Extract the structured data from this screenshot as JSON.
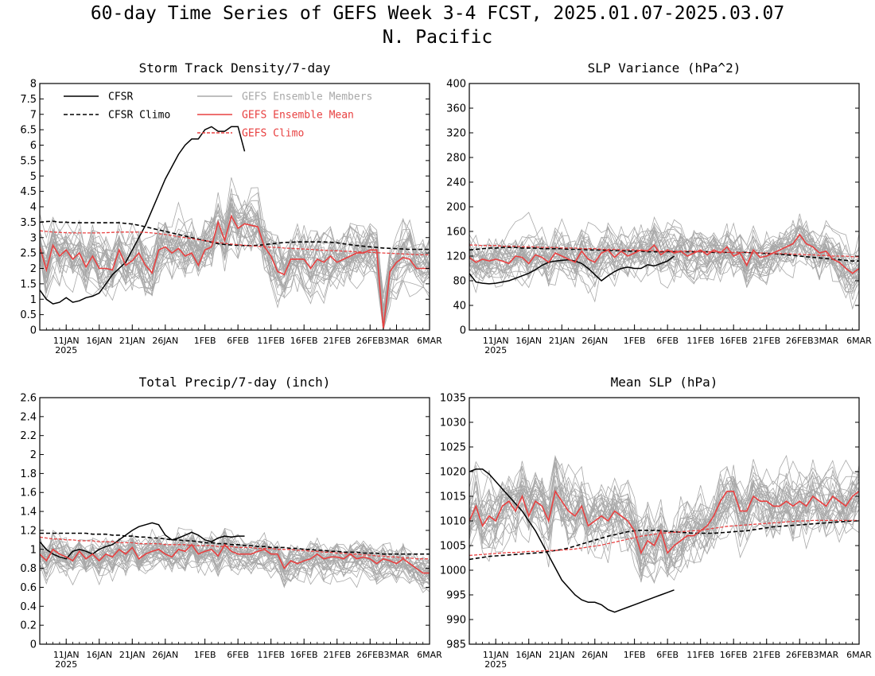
{
  "figure": {
    "title_line1": "60-day Time Series of GEFS Week 3-4 FCST, 2025.01.07-2025.03.07",
    "title_line2": "N. Pacific"
  },
  "colors": {
    "cfsr": "#000000",
    "members": "#a8a8a8",
    "ens_mean": "#e84040",
    "gefs_climo": "#e84040"
  },
  "legend": {
    "cfsr": "CFSR",
    "cfsr_climo": "CFSR Climo",
    "members": "GEFS Ensemble Members",
    "ens_mean": "GEFS Ensemble Mean",
    "gefs_climo": "GEFS Climo"
  },
  "x_axis": {
    "tick_day_index": [
      4,
      9,
      14,
      19,
      25,
      30,
      35,
      40,
      45,
      50,
      54,
      59
    ],
    "tick_labels": [
      "11JAN",
      "16JAN",
      "21JAN",
      "26JAN",
      "1FEB",
      "6FEB",
      "11FEB",
      "16FEB",
      "21FEB",
      "26FEB",
      "3MAR",
      "6MAR"
    ],
    "year_label": "2025"
  },
  "chart_data": [
    {
      "type": "line",
      "title": "Storm Track Density/7-day",
      "ylim": [
        0,
        8
      ],
      "yticks": [
        "0",
        "0.5",
        "1",
        "1.5",
        "2",
        "2.5",
        "3",
        "3.5",
        "4",
        "4.5",
        "5",
        "5.5",
        "6",
        "6.5",
        "7",
        "7.5",
        "8"
      ],
      "member_spread": 1.0,
      "series": [
        {
          "name": "CFSR",
          "values": [
            1.3,
            1.0,
            0.85,
            0.9,
            1.05,
            0.9,
            0.95,
            1.05,
            1.1,
            1.2,
            1.5,
            1.8,
            2.0,
            2.2,
            2.6,
            3.0,
            3.4,
            3.9,
            4.4,
            4.9,
            5.3,
            5.7,
            6.0,
            6.2,
            6.2,
            6.5,
            6.6,
            6.45,
            6.45,
            6.6,
            6.6,
            5.8
          ]
        },
        {
          "name": "CFSR Climo",
          "values": [
            3.5,
            3.52,
            3.53,
            3.5,
            3.5,
            3.48,
            3.48,
            3.48,
            3.48,
            3.48,
            3.48,
            3.48,
            3.48,
            3.46,
            3.44,
            3.4,
            3.35,
            3.3,
            3.25,
            3.2,
            3.15,
            3.1,
            3.05,
            3.0,
            2.95,
            2.9,
            2.85,
            2.8,
            2.78,
            2.76,
            2.75,
            2.74,
            2.74,
            2.75,
            2.77,
            2.8,
            2.82,
            2.84,
            2.85,
            2.86,
            2.86,
            2.86,
            2.86,
            2.86,
            2.85,
            2.83,
            2.8,
            2.77,
            2.74,
            2.72,
            2.7,
            2.68,
            2.66,
            2.65,
            2.64,
            2.63,
            2.62,
            2.62,
            2.62,
            2.62
          ]
        },
        {
          "name": "GEFS Ensemble Mean",
          "values": [
            2.7,
            1.95,
            2.75,
            2.4,
            2.6,
            2.3,
            2.5,
            2.05,
            2.4,
            2.0,
            2.0,
            1.95,
            2.6,
            2.1,
            2.25,
            2.5,
            2.1,
            1.85,
            2.6,
            2.7,
            2.5,
            2.65,
            2.4,
            2.5,
            2.1,
            2.6,
            2.7,
            3.5,
            2.9,
            3.7,
            3.3,
            3.45,
            3.4,
            3.35,
            2.7,
            2.4,
            1.9,
            1.8,
            2.3,
            2.3,
            2.3,
            2.0,
            2.3,
            2.2,
            2.4,
            2.2,
            2.3,
            2.4,
            2.5,
            2.5,
            2.6,
            2.6,
            0.05,
            1.9,
            2.2,
            2.35,
            2.3,
            2.0,
            2.0,
            2.0
          ]
        },
        {
          "name": "GEFS Climo",
          "values": [
            3.22,
            3.2,
            3.18,
            3.17,
            3.16,
            3.15,
            3.15,
            3.15,
            3.15,
            3.15,
            3.16,
            3.17,
            3.18,
            3.18,
            3.18,
            3.18,
            3.17,
            3.15,
            3.13,
            3.1,
            3.07,
            3.03,
            3.0,
            2.97,
            2.93,
            2.9,
            2.87,
            2.84,
            2.81,
            2.79,
            2.77,
            2.75,
            2.73,
            2.72,
            2.7,
            2.69,
            2.68,
            2.66,
            2.65,
            2.64,
            2.63,
            2.62,
            2.6,
            2.59,
            2.58,
            2.57,
            2.56,
            2.55,
            2.54,
            2.53,
            2.52,
            2.51,
            2.5,
            2.49,
            2.48,
            2.47,
            2.46,
            2.45,
            2.44,
            2.44
          ]
        }
      ]
    },
    {
      "type": "line",
      "title": "SLP Variance (hPa^2)",
      "ylim": [
        0,
        400
      ],
      "yticks": [
        "0",
        "40",
        "80",
        "120",
        "160",
        "200",
        "240",
        "280",
        "320",
        "360",
        "400"
      ],
      "member_spread": 42,
      "series": [
        {
          "name": "CFSR",
          "values": [
            92,
            78,
            76,
            75,
            76,
            78,
            80,
            84,
            88,
            92,
            98,
            105,
            110,
            112,
            113,
            114,
            112,
            108,
            100,
            90,
            80,
            88,
            95,
            100,
            102,
            100,
            100,
            106,
            104,
            108,
            112,
            120
          ]
        },
        {
          "name": "CFSR Climo",
          "values": [
            130,
            131,
            132,
            133,
            133,
            134,
            134,
            134,
            133,
            133,
            133,
            132,
            132,
            132,
            132,
            131,
            131,
            131,
            130,
            130,
            130,
            129,
            129,
            129,
            128,
            128,
            128,
            127,
            127,
            127,
            127,
            127,
            127,
            127,
            127,
            127,
            127,
            126,
            126,
            126,
            126,
            126,
            126,
            125,
            125,
            124,
            124,
            123,
            122,
            121,
            120,
            119,
            118,
            117,
            116,
            115,
            114,
            113,
            112,
            112
          ]
        },
        {
          "name": "GEFS Ensemble Mean",
          "values": [
            118,
            110,
            115,
            112,
            115,
            112,
            108,
            120,
            118,
            108,
            122,
            118,
            110,
            125,
            120,
            115,
            110,
            128,
            115,
            110,
            125,
            130,
            118,
            128,
            120,
            125,
            130,
            128,
            138,
            122,
            130,
            125,
            128,
            120,
            125,
            130,
            122,
            130,
            125,
            135,
            120,
            125,
            105,
            130,
            118,
            120,
            125,
            130,
            135,
            140,
            155,
            140,
            135,
            125,
            128,
            115,
            110,
            100,
            92,
            100
          ]
        },
        {
          "name": "GEFS Climo",
          "values": [
            138,
            138,
            137,
            137,
            137,
            136,
            136,
            136,
            135,
            135,
            135,
            134,
            134,
            134,
            133,
            133,
            133,
            132,
            132,
            132,
            131,
            131,
            131,
            130,
            130,
            130,
            129,
            129,
            129,
            128,
            128,
            128,
            128,
            128,
            128,
            127,
            127,
            127,
            127,
            126,
            126,
            126,
            126,
            125,
            125,
            125,
            124,
            124,
            124,
            123,
            123,
            122,
            122,
            121,
            121,
            120,
            120,
            120,
            119,
            119
          ]
        }
      ]
    },
    {
      "type": "line",
      "title": "Total Precip/7-day (inch)",
      "ylim": [
        0,
        2.6
      ],
      "yticks": [
        "0",
        "0.2",
        "0.4",
        "0.6",
        "0.8",
        "1",
        "1.2",
        "1.4",
        "1.6",
        "1.8",
        "2",
        "2.2",
        "2.4",
        "2.6"
      ],
      "member_spread": 0.2,
      "series": [
        {
          "name": "CFSR",
          "values": [
            1.08,
            1.0,
            0.95,
            0.92,
            0.9,
            0.98,
            1.0,
            0.98,
            0.95,
            1.0,
            1.03,
            1.05,
            1.1,
            1.15,
            1.2,
            1.24,
            1.26,
            1.28,
            1.26,
            1.15,
            1.1,
            1.12,
            1.15,
            1.18,
            1.15,
            1.1,
            1.08,
            1.12,
            1.14,
            1.13,
            1.14,
            1.14
          ]
        },
        {
          "name": "CFSR Climo",
          "values": [
            1.17,
            1.17,
            1.17,
            1.17,
            1.17,
            1.17,
            1.17,
            1.17,
            1.16,
            1.16,
            1.16,
            1.15,
            1.15,
            1.14,
            1.14,
            1.13,
            1.13,
            1.12,
            1.12,
            1.11,
            1.1,
            1.1,
            1.09,
            1.09,
            1.08,
            1.07,
            1.07,
            1.06,
            1.06,
            1.05,
            1.05,
            1.04,
            1.04,
            1.03,
            1.03,
            1.02,
            1.02,
            1.02,
            1.01,
            1.01,
            1.0,
            1.0,
            0.99,
            0.99,
            0.98,
            0.98,
            0.97,
            0.97,
            0.97,
            0.96,
            0.96,
            0.96,
            0.95,
            0.95,
            0.95,
            0.95,
            0.95,
            0.95,
            0.95,
            0.95
          ]
        },
        {
          "name": "GEFS Ensemble Mean",
          "values": [
            0.95,
            0.88,
            1.0,
            0.95,
            0.92,
            0.88,
            0.98,
            0.9,
            0.95,
            0.88,
            0.95,
            0.92,
            1.0,
            0.95,
            1.02,
            0.9,
            0.95,
            0.98,
            1.0,
            0.95,
            0.92,
            1.0,
            0.98,
            1.05,
            0.95,
            0.98,
            1.0,
            0.93,
            1.05,
            0.98,
            0.95,
            0.95,
            0.95,
            0.98,
            1.0,
            0.95,
            0.95,
            0.8,
            0.88,
            0.85,
            0.88,
            0.9,
            0.95,
            0.9,
            0.92,
            0.92,
            0.9,
            0.95,
            0.9,
            0.92,
            0.9,
            0.85,
            0.9,
            0.88,
            0.85,
            0.9,
            0.85,
            0.8,
            0.75,
            0.75
          ]
        },
        {
          "name": "GEFS Climo",
          "values": [
            1.13,
            1.12,
            1.11,
            1.11,
            1.1,
            1.1,
            1.09,
            1.09,
            1.09,
            1.08,
            1.08,
            1.08,
            1.07,
            1.07,
            1.07,
            1.06,
            1.06,
            1.06,
            1.06,
            1.05,
            1.05,
            1.05,
            1.05,
            1.04,
            1.04,
            1.04,
            1.04,
            1.03,
            1.03,
            1.03,
            1.02,
            1.02,
            1.02,
            1.01,
            1.01,
            1.01,
            1.0,
            1.0,
            1.0,
            0.99,
            0.99,
            0.98,
            0.98,
            0.97,
            0.97,
            0.96,
            0.96,
            0.95,
            0.95,
            0.94,
            0.94,
            0.93,
            0.93,
            0.92,
            0.92,
            0.91,
            0.91,
            0.9,
            0.9,
            0.9
          ]
        }
      ]
    },
    {
      "type": "line",
      "title": "Mean SLP (hPa)",
      "ylim": [
        985,
        1035
      ],
      "yticks": [
        "985",
        "990",
        "995",
        "1000",
        "1005",
        "1010",
        "1015",
        "1020",
        "1025",
        "1030",
        "1035"
      ],
      "member_spread": 7,
      "series": [
        {
          "name": "CFSR",
          "values": [
            1020,
            1020.5,
            1020.5,
            1019.5,
            1018,
            1016.5,
            1015,
            1013.5,
            1012,
            1010,
            1008,
            1005.5,
            1003,
            1000.5,
            998,
            996.5,
            995,
            994,
            993.5,
            993.5,
            993,
            992,
            991.5,
            992,
            992.5,
            993,
            993.5,
            994,
            994.5,
            995,
            995.5,
            996
          ]
        },
        {
          "name": "CFSR Climo",
          "values": [
            1002.2,
            1002.4,
            1002.6,
            1002.8,
            1002.9,
            1003,
            1003.1,
            1003.2,
            1003.3,
            1003.4,
            1003.5,
            1003.6,
            1003.8,
            1004,
            1004.2,
            1004.5,
            1004.9,
            1005.3,
            1005.7,
            1006.1,
            1006.5,
            1006.9,
            1007.2,
            1007.5,
            1007.8,
            1008,
            1008.1,
            1008.1,
            1008.1,
            1008,
            1007.9,
            1007.8,
            1007.7,
            1007.6,
            1007.5,
            1007.5,
            1007.5,
            1007.5,
            1007.6,
            1007.7,
            1007.8,
            1007.9,
            1008,
            1008.2,
            1008.4,
            1008.6,
            1008.8,
            1008.9,
            1009,
            1009.1,
            1009.2,
            1009.3,
            1009.4,
            1009.5,
            1009.6,
            1009.7,
            1009.8,
            1009.9,
            1010,
            1010
          ]
        },
        {
          "name": "GEFS Ensemble Mean",
          "values": [
            1010,
            1013,
            1009,
            1011,
            1010,
            1013,
            1014,
            1012,
            1015,
            1011,
            1014,
            1013,
            1010,
            1016,
            1014,
            1012,
            1011,
            1013,
            1009,
            1010,
            1011,
            1010,
            1012,
            1011,
            1010,
            1008,
            1003.5,
            1006,
            1005,
            1008,
            1003.5,
            1005,
            1006,
            1007,
            1007,
            1008,
            1009,
            1011,
            1014,
            1016,
            1016,
            1012,
            1012,
            1015,
            1014,
            1014,
            1013,
            1013,
            1014,
            1013,
            1014,
            1013,
            1015,
            1014,
            1013,
            1015,
            1014,
            1013,
            1015,
            1016
          ]
        },
        {
          "name": "GEFS Climo",
          "values": [
            1003,
            1003.1,
            1003.2,
            1003.3,
            1003.4,
            1003.5,
            1003.6,
            1003.6,
            1003.7,
            1003.8,
            1003.8,
            1003.9,
            1004,
            1004,
            1004.1,
            1004.2,
            1004.3,
            1004.5,
            1004.7,
            1004.9,
            1005.1,
            1005.4,
            1005.7,
            1006,
            1006.3,
            1006.6,
            1006.9,
            1007.1,
            1007.3,
            1007.5,
            1007.6,
            1007.7,
            1007.8,
            1007.9,
            1008,
            1008.1,
            1008.3,
            1008.5,
            1008.7,
            1008.9,
            1009,
            1009.1,
            1009.2,
            1009.3,
            1009.4,
            1009.5,
            1009.6,
            1009.7,
            1009.8,
            1009.9,
            1010,
            1010,
            1010.1,
            1010.1,
            1010.1,
            1010.1,
            1010.1,
            1010.1,
            1010.1,
            1010.1
          ]
        }
      ]
    }
  ]
}
